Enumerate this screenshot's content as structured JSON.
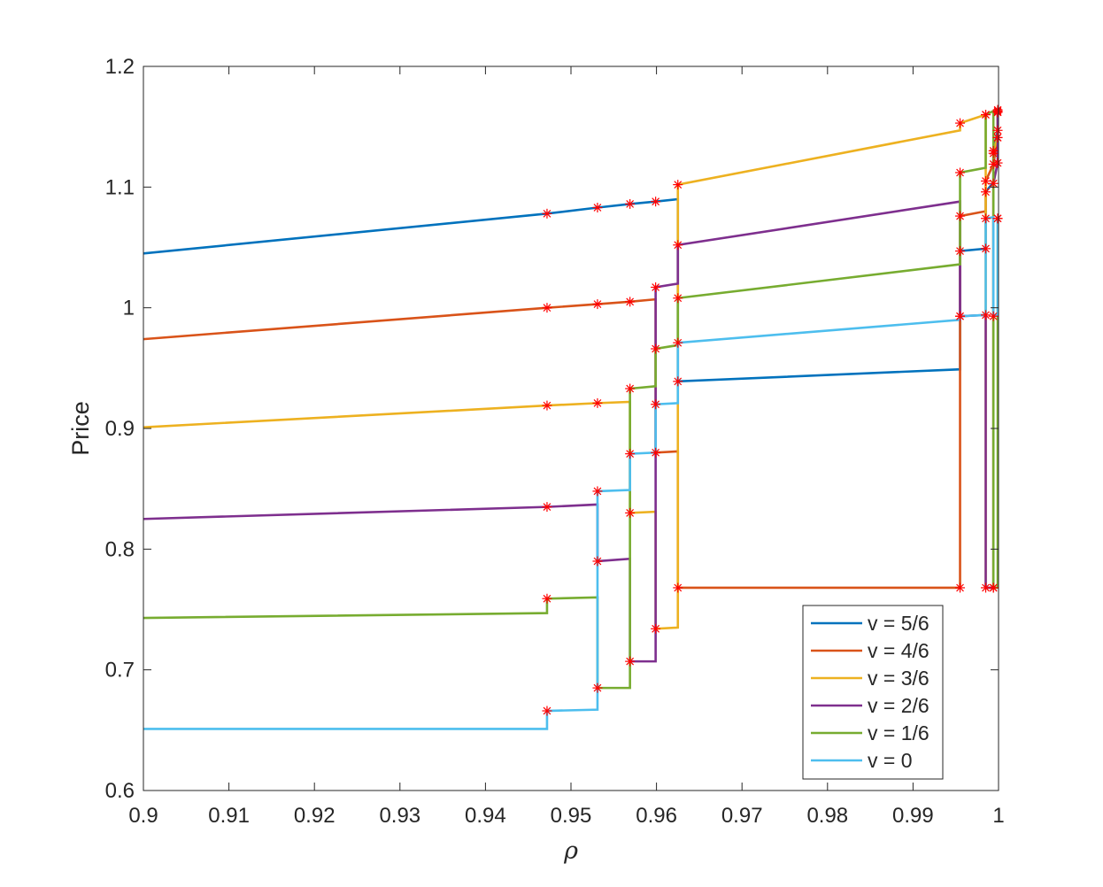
{
  "chart_data": {
    "type": "line",
    "title": "",
    "xlabel": "ρ",
    "ylabel": "Price",
    "xlim": [
      0.9,
      1.0
    ],
    "ylim": [
      0.6,
      1.2
    ],
    "x_ticks": [
      0.9,
      0.91,
      0.92,
      0.93,
      0.94,
      0.95,
      0.96,
      0.97,
      0.98,
      0.99,
      1
    ],
    "x_tick_labels": [
      "0.9",
      "0.91",
      "0.92",
      "0.93",
      "0.94",
      "0.95",
      "0.96",
      "0.97",
      "0.98",
      "0.99",
      "1"
    ],
    "y_ticks": [
      0.6,
      0.7,
      0.8,
      0.9,
      1.0,
      1.1,
      1.2
    ],
    "y_tick_labels": [
      "0.6",
      "0.7",
      "0.8",
      "0.9",
      "1",
      "1.1",
      "1.2"
    ],
    "grid": false,
    "box": true,
    "legend_position": "bottom-right",
    "marker_color": "#ff0000",
    "series": [
      {
        "name": "v = 5/6",
        "color": "#0072bd",
        "points": [
          [
            0.9,
            1.045
          ],
          [
            0.9472,
            1.078
          ],
          [
            0.9531,
            1.083
          ],
          [
            0.9569,
            1.086
          ],
          [
            0.9599,
            1.088
          ],
          [
            0.9625,
            1.09
          ],
          [
            0.9625,
            0.939
          ],
          [
            0.9955,
            0.949
          ],
          [
            0.9955,
            1.047
          ],
          [
            0.9985,
            1.049
          ],
          [
            0.9985,
            1.096
          ],
          [
            0.9994,
            1.104
          ],
          [
            0.9994,
            1.128
          ],
          [
            0.9999,
            1.147
          ],
          [
            0.9999,
            1.162
          ]
        ],
        "markers": [
          [
            0.9472,
            1.078
          ],
          [
            0.9531,
            1.083
          ],
          [
            0.9569,
            1.086
          ],
          [
            0.9599,
            1.088
          ],
          [
            0.9625,
            0.939
          ],
          [
            0.9955,
            1.047
          ],
          [
            0.9985,
            1.049
          ],
          [
            0.9985,
            1.096
          ],
          [
            0.9994,
            1.128
          ],
          [
            0.9999,
            1.147
          ],
          [
            0.9999,
            1.162
          ]
        ]
      },
      {
        "name": "v = 4/6",
        "color": "#d95319",
        "points": [
          [
            0.9,
            0.974
          ],
          [
            0.9472,
            1.0
          ],
          [
            0.9531,
            1.003
          ],
          [
            0.9569,
            1.005
          ],
          [
            0.9599,
            1.007
          ],
          [
            0.9599,
            0.88
          ],
          [
            0.9625,
            0.881
          ],
          [
            0.9625,
            0.768
          ],
          [
            0.9955,
            0.768
          ],
          [
            0.9955,
            1.076
          ],
          [
            0.9985,
            1.08
          ],
          [
            0.9985,
            1.105
          ],
          [
            0.9994,
            1.119
          ],
          [
            0.9999,
            1.141
          ],
          [
            0.9999,
            1.162
          ]
        ],
        "markers": [
          [
            0.9472,
            1.0
          ],
          [
            0.9531,
            1.003
          ],
          [
            0.9569,
            1.005
          ],
          [
            0.9599,
            0.88
          ],
          [
            0.9625,
            0.768
          ],
          [
            0.9955,
            0.768
          ],
          [
            0.9955,
            1.076
          ],
          [
            0.9985,
            1.105
          ],
          [
            0.9994,
            1.119
          ],
          [
            0.9999,
            1.141
          ],
          [
            0.9999,
            1.162
          ]
        ]
      },
      {
        "name": "v = 3/6",
        "color": "#edb120",
        "points": [
          [
            0.9,
            0.901
          ],
          [
            0.9472,
            0.919
          ],
          [
            0.9531,
            0.921
          ],
          [
            0.9569,
            0.922
          ],
          [
            0.9569,
            0.83
          ],
          [
            0.9599,
            0.831
          ],
          [
            0.9599,
            0.734
          ],
          [
            0.9625,
            0.735
          ],
          [
            0.9625,
            1.102
          ],
          [
            0.9955,
            1.147
          ],
          [
            0.9955,
            1.153
          ],
          [
            0.9985,
            1.16
          ],
          [
            0.9985,
            0.768
          ],
          [
            0.9994,
            0.768
          ],
          [
            0.9994,
            1.13
          ],
          [
            0.9999,
            1.141
          ],
          [
            0.9999,
            1.163
          ]
        ],
        "markers": [
          [
            0.9472,
            0.919
          ],
          [
            0.9531,
            0.921
          ],
          [
            0.9569,
            0.83
          ],
          [
            0.9599,
            0.734
          ],
          [
            0.9625,
            1.102
          ],
          [
            0.9955,
            1.153
          ],
          [
            0.9985,
            1.16
          ],
          [
            0.9994,
            0.768
          ],
          [
            0.9994,
            1.13
          ],
          [
            0.9999,
            1.141
          ],
          [
            0.9999,
            1.163
          ]
        ]
      },
      {
        "name": "v = 2/6",
        "color": "#7e2f8e",
        "points": [
          [
            0.9,
            0.825
          ],
          [
            0.9472,
            0.835
          ],
          [
            0.9531,
            0.837
          ],
          [
            0.9531,
            0.79
          ],
          [
            0.9569,
            0.792
          ],
          [
            0.9569,
            0.707
          ],
          [
            0.9599,
            0.707
          ],
          [
            0.9599,
            1.017
          ],
          [
            0.9625,
            1.02
          ],
          [
            0.9625,
            1.052
          ],
          [
            0.9955,
            1.088
          ],
          [
            0.9955,
            0.993
          ],
          [
            0.9985,
            0.994
          ],
          [
            0.9985,
            0.768
          ],
          [
            0.9994,
            0.768
          ],
          [
            0.9994,
            1.103
          ],
          [
            0.9999,
            1.12
          ],
          [
            0.9999,
            1.164
          ]
        ],
        "markers": [
          [
            0.9472,
            0.835
          ],
          [
            0.9531,
            0.79
          ],
          [
            0.9569,
            0.707
          ],
          [
            0.9599,
            1.017
          ],
          [
            0.9625,
            1.052
          ],
          [
            0.9955,
            0.993
          ],
          [
            0.9985,
            0.994
          ],
          [
            0.9985,
            0.768
          ],
          [
            0.9994,
            1.103
          ],
          [
            0.9999,
            1.12
          ],
          [
            0.9999,
            1.164
          ]
        ]
      },
      {
        "name": "v = 1/6",
        "color": "#77ac30",
        "points": [
          [
            0.9,
            0.743
          ],
          [
            0.9472,
            0.747
          ],
          [
            0.9472,
            0.759
          ],
          [
            0.9531,
            0.76
          ],
          [
            0.9531,
            0.685
          ],
          [
            0.9569,
            0.685
          ],
          [
            0.9569,
            0.933
          ],
          [
            0.9599,
            0.935
          ],
          [
            0.9599,
            0.966
          ],
          [
            0.9625,
            0.969
          ],
          [
            0.9625,
            1.008
          ],
          [
            0.9955,
            1.036
          ],
          [
            0.9955,
            1.112
          ],
          [
            0.9985,
            1.116
          ],
          [
            0.9985,
            1.16
          ],
          [
            0.9994,
            1.163
          ],
          [
            0.9994,
            0.768
          ],
          [
            0.9999,
            0.768
          ],
          [
            0.9999,
            1.074
          ]
        ],
        "markers": [
          [
            0.9472,
            0.759
          ],
          [
            0.9531,
            0.685
          ],
          [
            0.9569,
            0.933
          ],
          [
            0.9599,
            0.966
          ],
          [
            0.9625,
            1.008
          ],
          [
            0.9955,
            1.112
          ],
          [
            0.9985,
            1.16
          ],
          [
            0.9994,
            0.768
          ],
          [
            0.9999,
            1.074
          ]
        ]
      },
      {
        "name": "v = 0",
        "color": "#4dbeee",
        "points": [
          [
            0.9,
            0.651
          ],
          [
            0.9472,
            0.651
          ],
          [
            0.9472,
            0.666
          ],
          [
            0.9531,
            0.667
          ],
          [
            0.9531,
            0.848
          ],
          [
            0.9569,
            0.849
          ],
          [
            0.9569,
            0.879
          ],
          [
            0.9599,
            0.88
          ],
          [
            0.9599,
            0.92
          ],
          [
            0.9625,
            0.921
          ],
          [
            0.9625,
            0.971
          ],
          [
            0.9955,
            0.99
          ],
          [
            0.9955,
            0.993
          ],
          [
            0.9985,
            0.994
          ],
          [
            0.9985,
            1.074
          ],
          [
            0.9994,
            1.075
          ],
          [
            0.9994,
            0.993
          ],
          [
            0.9999,
            0.994
          ],
          [
            0.9999,
            1.074
          ]
        ],
        "markers": [
          [
            0.9472,
            0.666
          ],
          [
            0.9531,
            0.848
          ],
          [
            0.9569,
            0.879
          ],
          [
            0.9599,
            0.92
          ],
          [
            0.9625,
            0.971
          ],
          [
            0.9955,
            0.993
          ],
          [
            0.9985,
            1.074
          ],
          [
            0.9994,
            0.993
          ],
          [
            0.9999,
            1.074
          ]
        ]
      }
    ]
  }
}
